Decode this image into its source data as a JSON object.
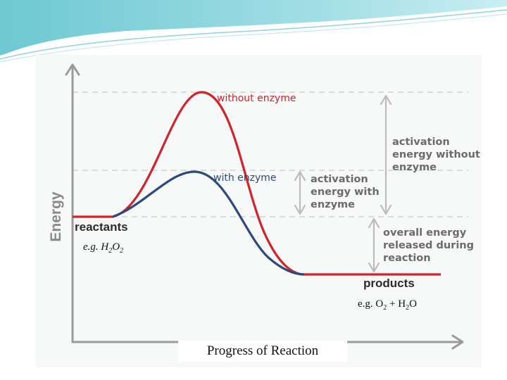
{
  "diagram": {
    "y_axis_label": "Energy",
    "x_axis_label": "Progress of Reaction",
    "curves": {
      "without_enzyme": {
        "label": "without enzyme",
        "color": "#d0232a"
      },
      "with_enzyme": {
        "label": "with enzyme",
        "color": "#2c4a7e"
      }
    },
    "states": {
      "reactants": "reactants",
      "products": "products"
    },
    "annotations": {
      "activation_without": [
        "activation",
        "energy without",
        "enzyme"
      ],
      "activation_with": [
        "activation",
        "energy with",
        "enzyme"
      ],
      "overall_release": [
        "overall energy",
        "released during",
        "reaction"
      ]
    },
    "examples": {
      "reactant_prefix": "e.g. ",
      "reactant_formula": {
        "a": "H",
        "a_sub": "2",
        "b": "O",
        "b_sub": "2"
      },
      "product_prefix": "e.g. ",
      "product_formula": {
        "a": "O",
        "a_sub": "2",
        "mid": " + H",
        "mid_sub": "2",
        "b": "O"
      }
    }
  }
}
